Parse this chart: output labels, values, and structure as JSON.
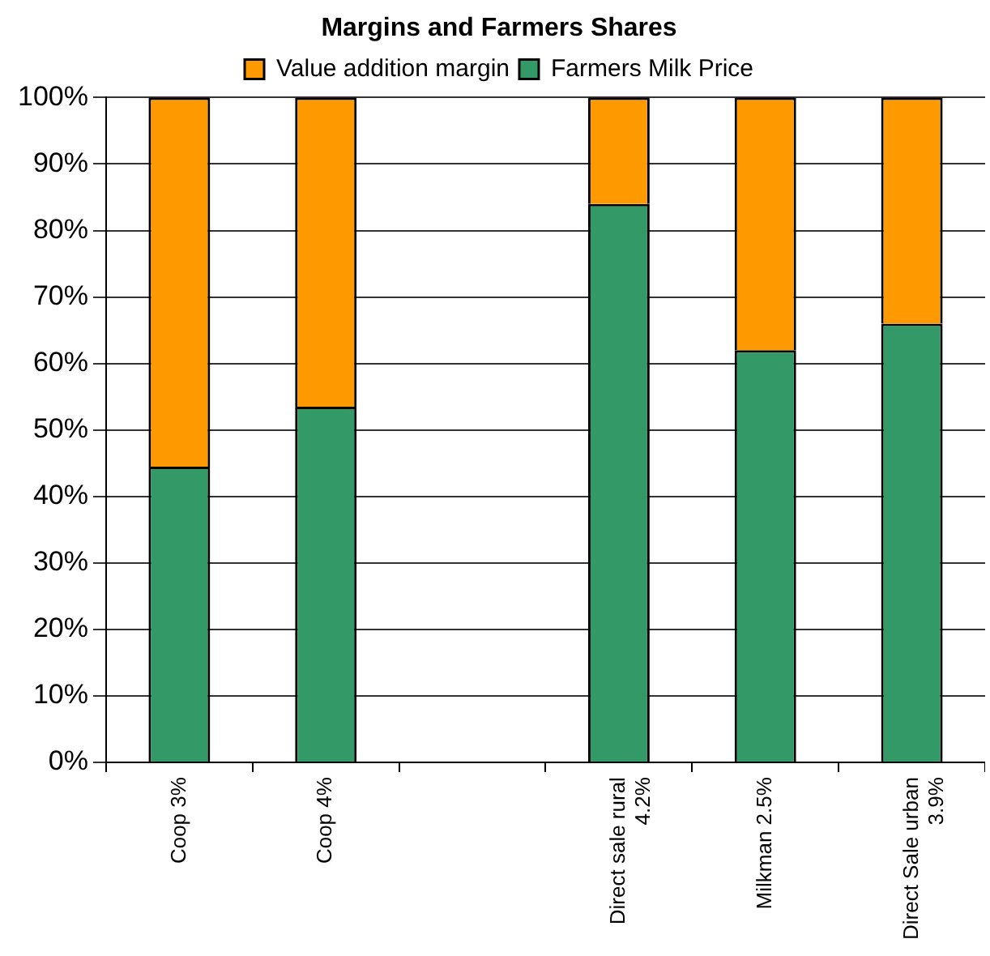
{
  "chart_data": {
    "type": "bar",
    "title": "Margins and Farmers Shares",
    "stacked": true,
    "categories": [
      "Coop 3%",
      "Coop 4%",
      null,
      "Direct sale rural 4.2%",
      "Milkman 2.5%",
      "Direct Sale urban 3.9%"
    ],
    "series": [
      {
        "name": "Farmers Milk Price",
        "color": "#339966",
        "values": [
          44.5,
          53.5,
          null,
          84,
          62,
          66
        ]
      },
      {
        "name": "Value addition margin",
        "color": "#ff9900",
        "values": [
          55.5,
          46.5,
          null,
          16,
          38,
          34
        ]
      }
    ],
    "ylim": [
      0,
      100
    ],
    "yticks": [
      {
        "value": 0,
        "label": "0%"
      },
      {
        "value": 10,
        "label": "10%"
      },
      {
        "value": 20,
        "label": "20%"
      },
      {
        "value": 30,
        "label": "30%"
      },
      {
        "value": 40,
        "label": "40%"
      },
      {
        "value": 50,
        "label": "50%"
      },
      {
        "value": 60,
        "label": "60%"
      },
      {
        "value": 70,
        "label": "70%"
      },
      {
        "value": 80,
        "label": "80%"
      },
      {
        "value": 90,
        "label": "90%"
      },
      {
        "value": 100,
        "label": "100%"
      }
    ],
    "grid": "y",
    "legend": "top"
  }
}
